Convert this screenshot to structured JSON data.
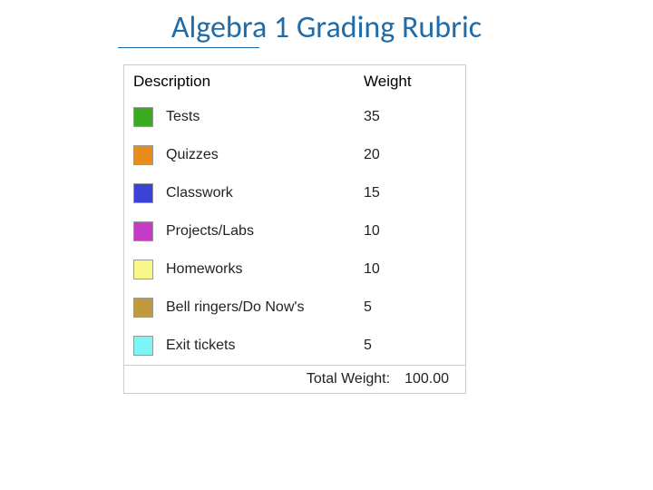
{
  "title": "Algebra 1 Grading Rubric",
  "title_color": "#1f6ca8",
  "title_fontsize": 34,
  "underline_width": 156,
  "box": {
    "border_color": "#cccccc",
    "background_color": "#ffffff",
    "header": {
      "description": "Description",
      "weight": "Weight",
      "fontsize": 17,
      "color": "#000000"
    },
    "row_fontsize": 16,
    "row_text_color": "#222222",
    "swatch_border": "#999999",
    "items": [
      {
        "label": "Tests",
        "weight": "35",
        "color": "#3aab1e"
      },
      {
        "label": "Quizzes",
        "weight": "20",
        "color": "#e88d1c"
      },
      {
        "label": "Classwork",
        "weight": "15",
        "color": "#3a43d4"
      },
      {
        "label": "Projects/Labs",
        "weight": "10",
        "color": "#c43cc4"
      },
      {
        "label": "Homeworks",
        "weight": "10",
        "color": "#f7f78a"
      },
      {
        "label": "Bell ringers/Do Now's",
        "weight": "5",
        "color": "#c09a3c"
      },
      {
        "label": "Exit tickets",
        "weight": "5",
        "color": "#7df5f5"
      }
    ],
    "footer": {
      "label": "Total Weight:",
      "value": "100.00"
    }
  }
}
